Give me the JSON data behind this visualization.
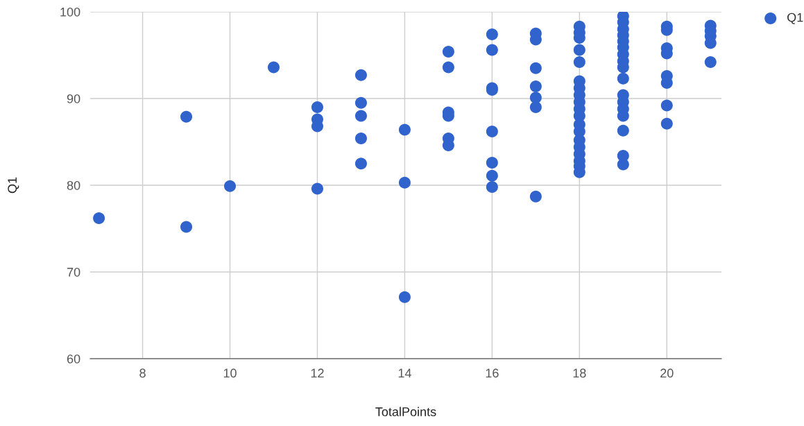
{
  "chart_data": {
    "type": "scatter",
    "xlabel": "TotalPoints",
    "ylabel": "Q1",
    "xlim": [
      6.8,
      21.25
    ],
    "ylim": [
      60,
      100
    ],
    "xticks": [
      8,
      10,
      12,
      14,
      16,
      18,
      20
    ],
    "yticks": [
      60,
      70,
      80,
      90,
      100
    ],
    "grid": true,
    "legend": "top right",
    "marker": "circle",
    "series": [
      {
        "name": "Q1",
        "color": "#3063cc",
        "x": [
          7,
          9,
          9,
          10,
          11,
          12,
          12,
          12,
          12,
          13,
          13,
          13,
          13,
          13,
          14,
          14,
          14,
          15,
          15,
          15,
          15,
          15,
          15,
          16,
          16,
          16,
          16,
          16,
          16,
          16,
          16,
          17,
          17,
          17,
          17,
          17,
          17,
          17,
          18,
          18,
          18,
          18,
          18,
          18,
          18,
          18,
          18,
          18,
          18,
          18,
          18,
          18,
          18,
          18,
          18,
          18,
          18,
          19,
          19,
          19,
          19,
          19,
          19,
          19,
          19,
          19,
          19,
          19,
          19,
          19,
          19,
          19,
          19,
          19,
          20,
          20,
          20,
          20,
          20,
          20,
          20,
          20,
          21,
          21,
          21,
          21,
          21
        ],
        "values": [
          76.2,
          87.9,
          75.2,
          79.9,
          93.6,
          89.0,
          87.6,
          86.8,
          79.6,
          92.7,
          89.5,
          88.0,
          85.4,
          82.5,
          86.4,
          80.3,
          67.1,
          95.4,
          93.6,
          88.4,
          88.0,
          85.4,
          84.6,
          97.4,
          95.6,
          91.2,
          91.0,
          86.2,
          82.6,
          81.1,
          79.8,
          97.5,
          96.8,
          93.5,
          91.4,
          90.1,
          89.0,
          78.7,
          98.3,
          97.6,
          97.0,
          95.6,
          94.2,
          92.0,
          91.2,
          90.4,
          89.6,
          88.8,
          88.0,
          87.0,
          86.2,
          85.2,
          84.4,
          83.6,
          82.8,
          82.2,
          81.5,
          99.5,
          98.8,
          98.0,
          97.3,
          96.6,
          95.9,
          95.1,
          94.3,
          93.6,
          92.3,
          90.4,
          89.6,
          88.8,
          88.0,
          86.3,
          83.4,
          82.4,
          98.3,
          97.9,
          95.8,
          95.2,
          92.6,
          91.8,
          89.2,
          87.1,
          98.4,
          97.8,
          97.2,
          96.4,
          94.2
        ]
      }
    ]
  }
}
